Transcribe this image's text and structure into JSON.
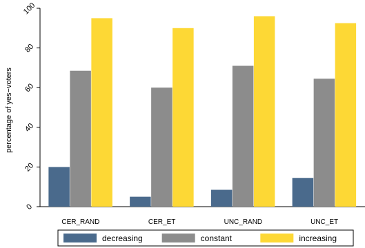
{
  "chart_data": {
    "type": "bar",
    "categories": [
      "CER_RAND",
      "CER_ET",
      "UNC_RAND",
      "UNC_ET"
    ],
    "series": [
      {
        "name": "decreasing",
        "color": "#4a6a8c",
        "values": [
          20,
          5,
          8.5,
          14.5
        ]
      },
      {
        "name": "constant",
        "color": "#8c8c8c",
        "values": [
          68.5,
          60,
          71,
          64.5
        ]
      },
      {
        "name": "increasing",
        "color": "#fdd835",
        "values": [
          95,
          90,
          96,
          92.5
        ]
      }
    ],
    "ylabel": "percentage of yes−voters",
    "ylim": [
      0,
      100
    ],
    "yticks": [
      0,
      20,
      40,
      60,
      80,
      100
    ],
    "grid": false,
    "legend_position": "bottom"
  }
}
